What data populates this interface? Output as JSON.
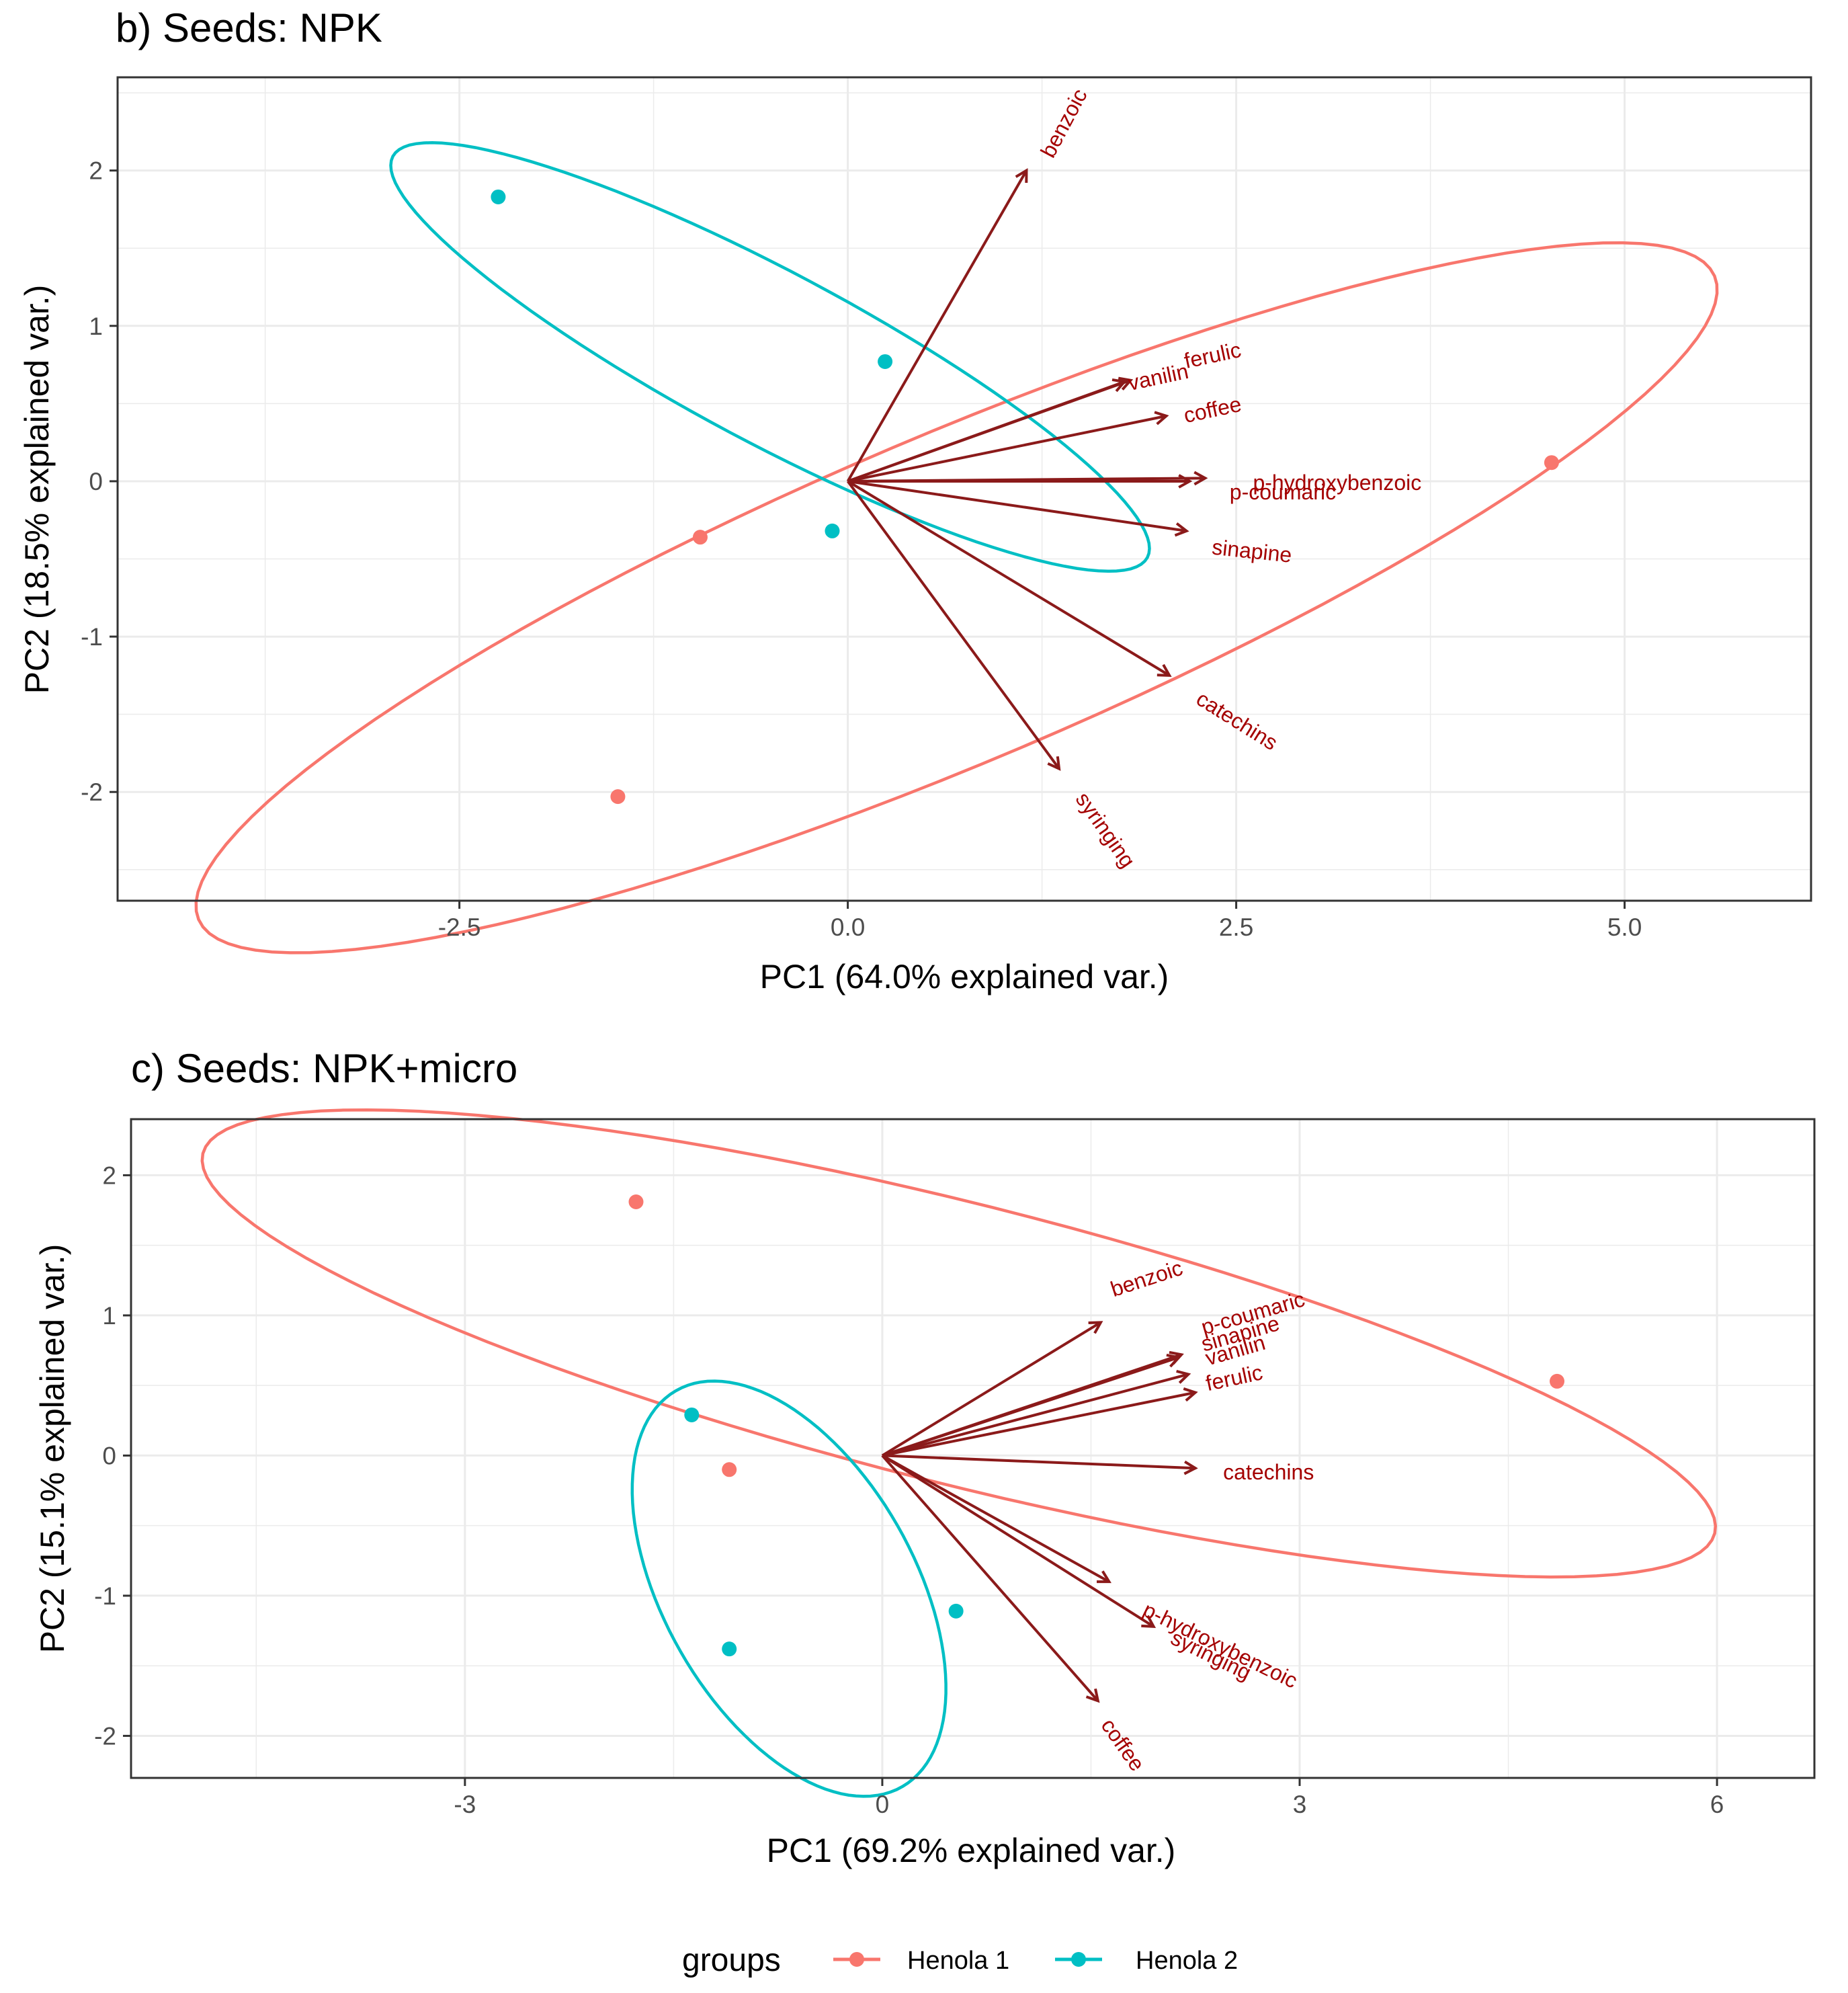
{
  "legend": {
    "title": "groups",
    "entries": [
      {
        "label": "Henola 1",
        "color": "#F8766D"
      },
      {
        "label": "Henola 2",
        "color": "#00BFC4"
      }
    ]
  },
  "arrow_color": "#8B1A1A",
  "chart_data": [
    {
      "type": "scatter",
      "subtype": "pca-biplot",
      "title": "b) Seeds: NPK",
      "xlabel": "PC1 (64.0% explained var.)",
      "ylabel": "PC2 (18.5% explained var.)",
      "xlim": [
        -4.7,
        6.2
      ],
      "ylim": [
        -2.7,
        2.6
      ],
      "xticks": [
        -2.5,
        0,
        2.5,
        5
      ],
      "xtick_labels": [
        "-2.5",
        "0.0",
        "2.5",
        "5.0"
      ],
      "yticks": [
        -2,
        -1,
        0,
        1,
        2
      ],
      "ytick_labels": [
        "-2",
        "-1",
        "0",
        "1",
        "2"
      ],
      "grid": true,
      "points": [
        {
          "group": "Henola 2",
          "x": -2.25,
          "y": 1.83
        },
        {
          "group": "Henola 2",
          "x": 0.24,
          "y": 0.77
        },
        {
          "group": "Henola 2",
          "x": -0.1,
          "y": -0.32
        },
        {
          "group": "Henola 1",
          "x": -0.95,
          "y": -0.36
        },
        {
          "group": "Henola 1",
          "x": -1.48,
          "y": -2.03
        },
        {
          "group": "Henola 1",
          "x": 4.53,
          "y": 0.12
        }
      ],
      "ellipses": [
        {
          "group": "Henola 1",
          "cx": 0.7,
          "cy": -0.75,
          "rx": 5.3,
          "ry": 1.05,
          "angle": 23
        },
        {
          "group": "Henola 2",
          "cx": -0.5,
          "cy": 0.8,
          "rx": 2.75,
          "ry": 0.55,
          "angle": -28
        }
      ],
      "loadings": [
        {
          "label": "benzoic",
          "x": 1.15,
          "y": 2.0,
          "lx": 1.4,
          "ly": 2.3,
          "angle": -62,
          "anchor": "middle"
        },
        {
          "label": "vanilin",
          "x": 1.78,
          "y": 0.64,
          "lx": 2.0,
          "ly": 0.66,
          "angle": -12,
          "anchor": "middle"
        },
        {
          "label": "ferulic",
          "x": 1.82,
          "y": 0.65,
          "lx": 2.35,
          "ly": 0.8,
          "angle": -12,
          "anchor": "middle"
        },
        {
          "label": "coffee",
          "x": 2.05,
          "y": 0.42,
          "lx": 2.35,
          "ly": 0.45,
          "angle": -12,
          "anchor": "middle"
        },
        {
          "label": "p-hydroxybenzoic",
          "x": 2.3,
          "y": 0.02,
          "lx": 3.15,
          "ly": -0.02,
          "angle": 0,
          "anchor": "middle"
        },
        {
          "label": "p-coumaric",
          "x": 2.2,
          "y": 0.0,
          "lx": 2.8,
          "ly": -0.08,
          "angle": 0,
          "anchor": "middle"
        },
        {
          "label": "sinapine",
          "x": 2.18,
          "y": -0.32,
          "lx": 2.6,
          "ly": -0.46,
          "angle": 6,
          "anchor": "middle"
        },
        {
          "label": "catechins",
          "x": 2.07,
          "y": -1.25,
          "lx": 2.5,
          "ly": -1.55,
          "angle": 32,
          "anchor": "middle"
        },
        {
          "label": "syringing",
          "x": 1.36,
          "y": -1.85,
          "lx": 1.65,
          "ly": -2.25,
          "angle": 55,
          "anchor": "middle"
        }
      ]
    },
    {
      "type": "scatter",
      "subtype": "pca-biplot",
      "title": "c) Seeds: NPK+micro",
      "xlabel": "PC1 (69.2% explained var.)",
      "ylabel": "PC2 (15.1% explained var.)",
      "xlim": [
        -5.4,
        6.7
      ],
      "ylim": [
        -2.3,
        2.4
      ],
      "xticks": [
        -3,
        0,
        3,
        6
      ],
      "xtick_labels": [
        "-3",
        "0",
        "3",
        "6"
      ],
      "yticks": [
        -2,
        -1,
        0,
        1,
        2
      ],
      "ytick_labels": [
        "-2",
        "-1",
        "0",
        "1",
        "2"
      ],
      "grid": true,
      "points": [
        {
          "group": "Henola 1",
          "x": -1.77,
          "y": 1.81
        },
        {
          "group": "Henola 1",
          "x": -1.1,
          "y": -0.1
        },
        {
          "group": "Henola 1",
          "x": 4.85,
          "y": 0.53
        },
        {
          "group": "Henola 2",
          "x": -1.37,
          "y": 0.29
        },
        {
          "group": "Henola 2",
          "x": -1.1,
          "y": -1.38
        },
        {
          "group": "Henola 2",
          "x": 0.53,
          "y": -1.11
        }
      ],
      "ellipses": [
        {
          "group": "Henola 1",
          "cx": 0.55,
          "cy": 0.8,
          "rx": 5.6,
          "ry": 1.0,
          "angle": -14
        },
        {
          "group": "Henola 2",
          "cx": -0.67,
          "cy": -0.95,
          "rx": 1.63,
          "ry": 0.9,
          "angle": -60
        }
      ],
      "loadings": [
        {
          "label": "benzoic",
          "x": 1.57,
          "y": 0.95,
          "lx": 1.65,
          "ly": 1.17,
          "angle": -18,
          "anchor": "start"
        },
        {
          "label": "p-coumaric",
          "x": 2.15,
          "y": 0.72,
          "lx": 2.3,
          "ly": 0.9,
          "angle": -16,
          "anchor": "start"
        },
        {
          "label": "sinapine",
          "x": 2.13,
          "y": 0.7,
          "lx": 2.3,
          "ly": 0.78,
          "angle": -16,
          "anchor": "start"
        },
        {
          "label": "vanilin",
          "x": 2.2,
          "y": 0.58,
          "lx": 2.33,
          "ly": 0.68,
          "angle": -16,
          "anchor": "start"
        },
        {
          "label": "ferulic",
          "x": 2.25,
          "y": 0.45,
          "lx": 2.33,
          "ly": 0.5,
          "angle": -12,
          "anchor": "start"
        },
        {
          "label": "catechins",
          "x": 2.25,
          "y": -0.09,
          "lx": 2.45,
          "ly": -0.13,
          "angle": 0,
          "anchor": "start"
        },
        {
          "label": "p-hydroxybenzoic",
          "x": 1.63,
          "y": -0.9,
          "lx": 1.88,
          "ly": -1.1,
          "angle": 26,
          "anchor": "start"
        },
        {
          "label": "syringing",
          "x": 1.95,
          "y": -1.22,
          "lx": 2.08,
          "ly": -1.3,
          "angle": 26,
          "anchor": "start"
        },
        {
          "label": "coffee",
          "x": 1.55,
          "y": -1.75,
          "lx": 1.6,
          "ly": -1.9,
          "angle": 55,
          "anchor": "start"
        }
      ]
    }
  ]
}
